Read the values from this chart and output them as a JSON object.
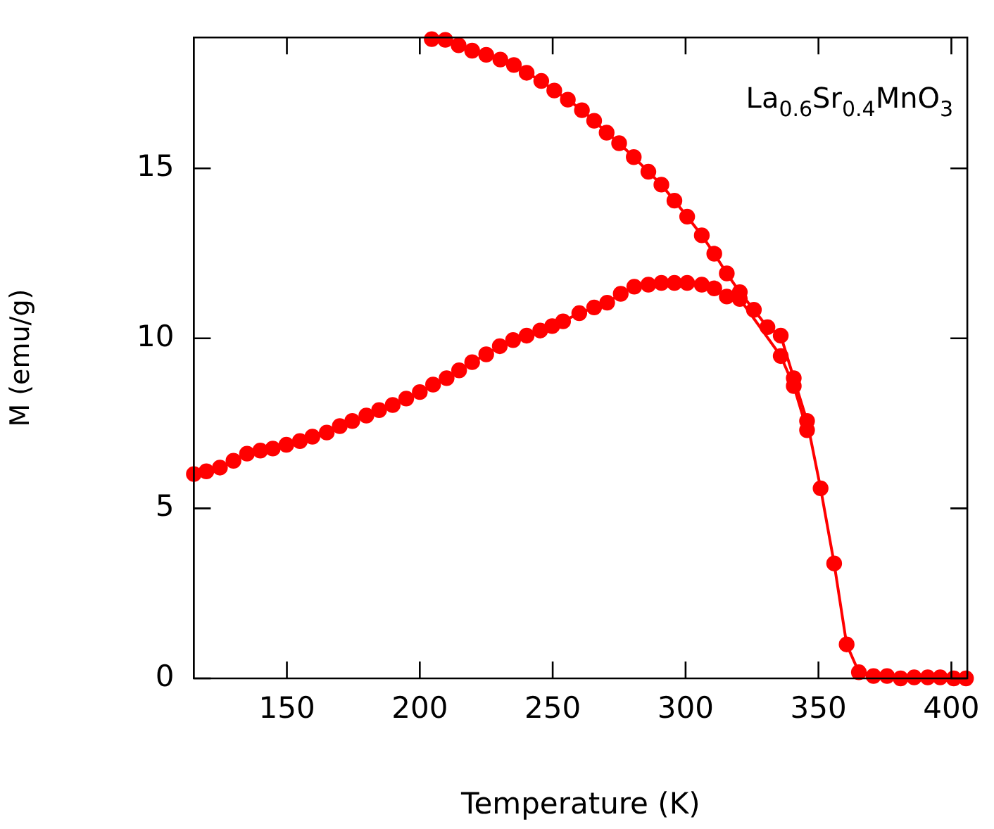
{
  "chart_data": {
    "type": "line",
    "xlabel": "Temperature (K)",
    "ylabel": "M (emu/g)",
    "annotations": [
      "La$_{0.6}$Sr$_{0.4}$MnO$_{3}$"
    ],
    "xlim": [
      115,
      406
    ],
    "ylim": [
      0,
      18.85
    ],
    "xticks": [
      150,
      200,
      250,
      300,
      350,
      400
    ],
    "yticks": [
      0,
      5,
      10,
      15
    ],
    "grid": false,
    "legend": false,
    "marker": "circle",
    "line_style": "solid",
    "series": [
      {
        "color": "#ff0000",
        "x": [
          204.5,
          209.6,
          214.6,
          219.7,
          225.0,
          230.3,
          235.4,
          240.2,
          245.7,
          250.6,
          255.7,
          261.0,
          265.6,
          270.3,
          275.0,
          280.5,
          286.0,
          290.9,
          295.8,
          300.6,
          306.1,
          310.8,
          315.5,
          320.4,
          325.7,
          330.8,
          335.8,
          340.7,
          345.7,
          350.8,
          355.9,
          360.6,
          365.2,
          370.7,
          375.8,
          380.9,
          386.0,
          391.1,
          395.8,
          400.9,
          405.5
        ],
        "values": [
          18.8,
          18.78,
          18.62,
          18.46,
          18.34,
          18.2,
          18.04,
          17.81,
          17.57,
          17.29,
          17.02,
          16.71,
          16.4,
          16.05,
          15.74,
          15.33,
          14.9,
          14.52,
          14.05,
          13.58,
          13.03,
          12.49,
          11.91,
          11.36,
          10.84,
          10.33,
          10.08,
          8.83,
          7.57,
          5.59,
          3.38,
          1.0,
          0.18,
          0.07,
          0.07,
          0.0,
          0.03,
          0.03,
          0.03,
          0.0,
          0.0
        ]
      },
      {
        "color": "#ff0000",
        "x": [
          115.0,
          119.7,
          124.8,
          129.9,
          135.0,
          140.0,
          144.7,
          149.8,
          154.9,
          159.6,
          165.0,
          169.9,
          174.6,
          179.9,
          184.7,
          189.8,
          194.9,
          200.0,
          205.0,
          210.1,
          214.8,
          219.7,
          225.0,
          230.1,
          235.1,
          240.2,
          245.3,
          249.8,
          253.9,
          260.0,
          265.6,
          270.5,
          275.6,
          280.7,
          286.0,
          290.9,
          295.8,
          300.6,
          306.1,
          310.8,
          315.5,
          320.4,
          335.8,
          340.7,
          345.7
        ],
        "values": [
          6.01,
          6.09,
          6.2,
          6.4,
          6.61,
          6.7,
          6.76,
          6.87,
          6.98,
          7.11,
          7.23,
          7.42,
          7.57,
          7.73,
          7.89,
          8.04,
          8.23,
          8.42,
          8.64,
          8.83,
          9.06,
          9.3,
          9.53,
          9.77,
          9.95,
          10.08,
          10.23,
          10.36,
          10.5,
          10.74,
          10.91,
          11.05,
          11.31,
          11.52,
          11.58,
          11.63,
          11.63,
          11.63,
          11.58,
          11.47,
          11.23,
          11.16,
          9.48,
          8.6,
          7.3
        ]
      }
    ]
  }
}
